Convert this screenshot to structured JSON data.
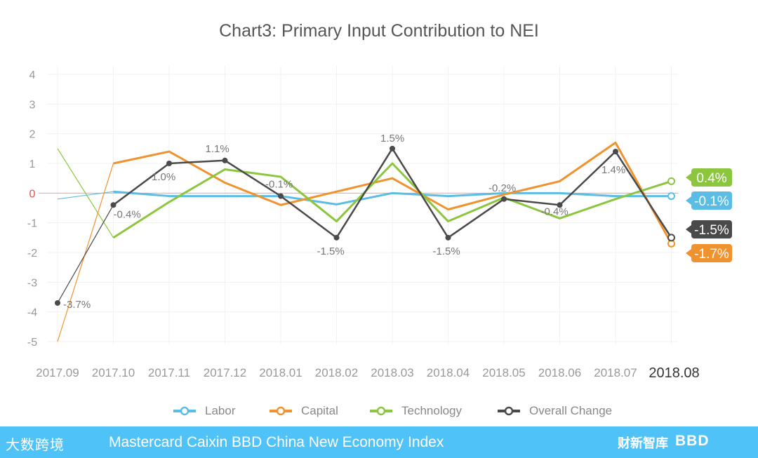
{
  "chart_data": {
    "type": "line",
    "title": "Chart3: Primary Input Contribution to NEI",
    "categories": [
      "2017.09",
      "2017.10",
      "2017.11",
      "2017.12",
      "2018.01",
      "2018.02",
      "2018.03",
      "2018.04",
      "2018.05",
      "2018.06",
      "2018.07",
      "2018.08"
    ],
    "yticks": [
      "4",
      "3",
      "2",
      "1",
      "0",
      "-1",
      "-2",
      "-3",
      "-4",
      "-5"
    ],
    "ylim": [
      -5,
      4
    ],
    "grid": true,
    "legend_position": "bottom",
    "series": [
      {
        "name": "Labor",
        "color": "#5bbde6",
        "values": [
          -0.2,
          0.05,
          -0.1,
          -0.1,
          -0.1,
          -0.38,
          0,
          -0.1,
          0,
          0,
          -0.1,
          -0.1
        ],
        "end_label": "-0.1%"
      },
      {
        "name": "Capital",
        "color": "#f0922e",
        "values": [
          -5,
          1,
          1.4,
          0.35,
          -0.4,
          0.05,
          0.5,
          -0.55,
          -0.05,
          0.4,
          1.7,
          -1.7
        ],
        "end_label": "-1.7%"
      },
      {
        "name": "Technology",
        "color": "#8cc63f",
        "values": [
          1.5,
          -1.5,
          -0.3,
          0.8,
          0.55,
          -0.95,
          1,
          -0.95,
          -0.15,
          -0.85,
          -0.2,
          0.4
        ],
        "end_label": "0.4%"
      },
      {
        "name": "Overall Change",
        "color": "#4a4a4a",
        "values": [
          -3.7,
          -0.4,
          1.0,
          1.1,
          -0.1,
          -1.5,
          1.5,
          -1.5,
          -0.2,
          -0.4,
          1.4,
          -1.5
        ],
        "end_label": "-1.5%",
        "point_labels": [
          "-3.7%",
          "-0.4%",
          "1.0%",
          "1.1%",
          "-0.1%",
          "-1.5%",
          "1.5%",
          "-1.5%",
          "-0.2%",
          "-0.4%",
          "1.4%",
          ""
        ]
      }
    ]
  },
  "footer": {
    "logo_text": "大数跨境",
    "title": "Mastercard Caixin BBD China New Economy Index",
    "brand_1": "财新智库",
    "brand_2": "BBD"
  }
}
